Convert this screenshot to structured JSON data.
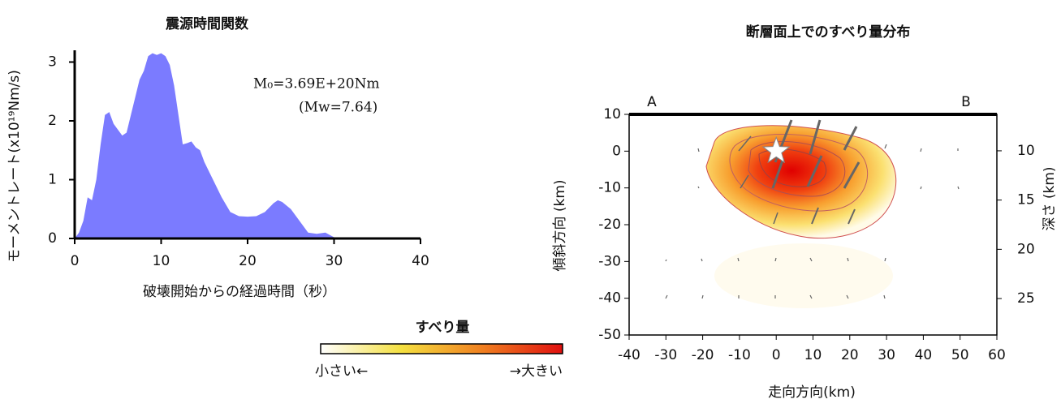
{
  "chart_data": [
    {
      "type": "area",
      "title": "震源時間関数",
      "ylabel": "モーメントレート(x10¹⁹Nm/s)",
      "xlabel": "破壊開始からの経過時間（秒）",
      "annotations": [
        "M₀=3.69E+20Nm",
        "(Mw=7.64)"
      ],
      "color": "#7b7bff",
      "x": [
        0,
        0.5,
        1,
        1.5,
        2,
        2.5,
        3,
        3.5,
        4,
        4.5,
        5,
        5.5,
        6,
        6.5,
        7,
        7.5,
        8,
        8.5,
        9,
        9.5,
        10,
        10.5,
        11,
        11.5,
        12,
        12.5,
        13,
        13.5,
        14,
        14.5,
        15,
        16,
        17,
        18,
        19,
        20,
        21,
        22,
        23,
        23.5,
        24,
        25,
        26,
        27,
        28,
        29,
        30,
        30.5
      ],
      "values": [
        0,
        0.1,
        0.3,
        0.7,
        0.65,
        1.0,
        1.6,
        2.1,
        2.15,
        1.95,
        1.85,
        1.75,
        1.8,
        2.1,
        2.4,
        2.7,
        2.85,
        3.1,
        3.15,
        3.12,
        3.15,
        3.1,
        2.95,
        2.6,
        2.1,
        1.6,
        1.62,
        1.65,
        1.55,
        1.5,
        1.3,
        1.0,
        0.7,
        0.45,
        0.38,
        0.37,
        0.38,
        0.45,
        0.6,
        0.65,
        0.62,
        0.5,
        0.3,
        0.1,
        0.08,
        0.1,
        0.02,
        0
      ],
      "xlim": [
        0,
        40
      ],
      "xticks": [
        0,
        10,
        20,
        30,
        40
      ],
      "ylim": [
        0,
        3.2
      ],
      "yticks": [
        0,
        1,
        2,
        3
      ]
    },
    {
      "type": "slip-map",
      "title": "断層面上でのすべり量分布",
      "xlabel": "走向方向(km)",
      "ylabel": "傾斜方向 (km)",
      "y2label": "深さ (km)",
      "xlim": [
        -40,
        60
      ],
      "xticks": [
        -40,
        -30,
        -20,
        -10,
        0,
        10,
        20,
        30,
        40,
        50,
        60
      ],
      "ylim": [
        -50,
        10
      ],
      "yticks": [
        -50,
        -40,
        -30,
        -20,
        -10,
        0,
        10
      ],
      "y2lim": [
        6.3,
        28.7
      ],
      "y2_inverted": true,
      "y2ticks": [
        10,
        15,
        20,
        25
      ],
      "annotations": [
        "A",
        "B"
      ],
      "annotation_color": "#e02020",
      "hypocenter": {
        "x": 0,
        "y": 0
      },
      "colorbar": {
        "title": "すべり量",
        "low_label": "小さい←",
        "high_label": "→大きい",
        "colors": [
          "#ffffff",
          "#f4e040",
          "#f08020",
          "#e01010"
        ]
      }
    }
  ]
}
